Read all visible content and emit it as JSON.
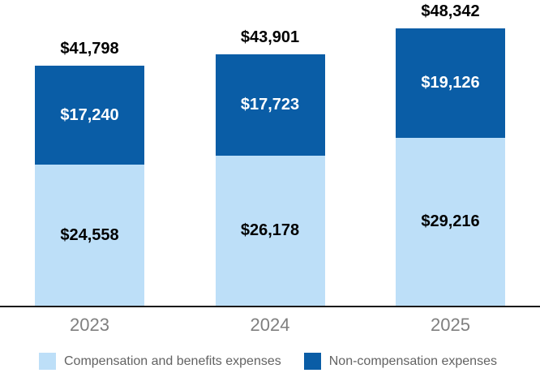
{
  "chart_data": {
    "type": "bar",
    "variant": "stacked",
    "title": "",
    "xlabel": "",
    "ylabel": "",
    "categories": [
      "2023",
      "2024",
      "2025"
    ],
    "series": [
      {
        "name": "Compensation and benefits expenses",
        "color": "#BDDFF8",
        "label_color": "#000000",
        "values": [
          24558,
          26178,
          29216
        ],
        "labels": [
          "$24,558",
          "$26,178",
          "$29,216"
        ]
      },
      {
        "name": "Non-compensation expenses",
        "color": "#0A5DA6",
        "label_color": "#FFFFFF",
        "values": [
          17240,
          17723,
          19126
        ],
        "labels": [
          "$17,240",
          "$17,723",
          "$19,126"
        ]
      }
    ],
    "totals": [
      41798,
      43901,
      48342
    ],
    "total_labels": [
      "$41,798",
      "$43,901",
      "$48,342"
    ],
    "axis": {
      "baseline_color": "#1A1A1A",
      "category_label_color": "#7F7F7F",
      "grid": false
    },
    "legend": {
      "position": "bottom",
      "text_color": "#636363",
      "items": [
        {
          "label": "Compensation and benefits expenses",
          "color": "#BDDFF8"
        },
        {
          "label": "Non-compensation expenses",
          "color": "#0A5DA6"
        }
      ]
    }
  }
}
